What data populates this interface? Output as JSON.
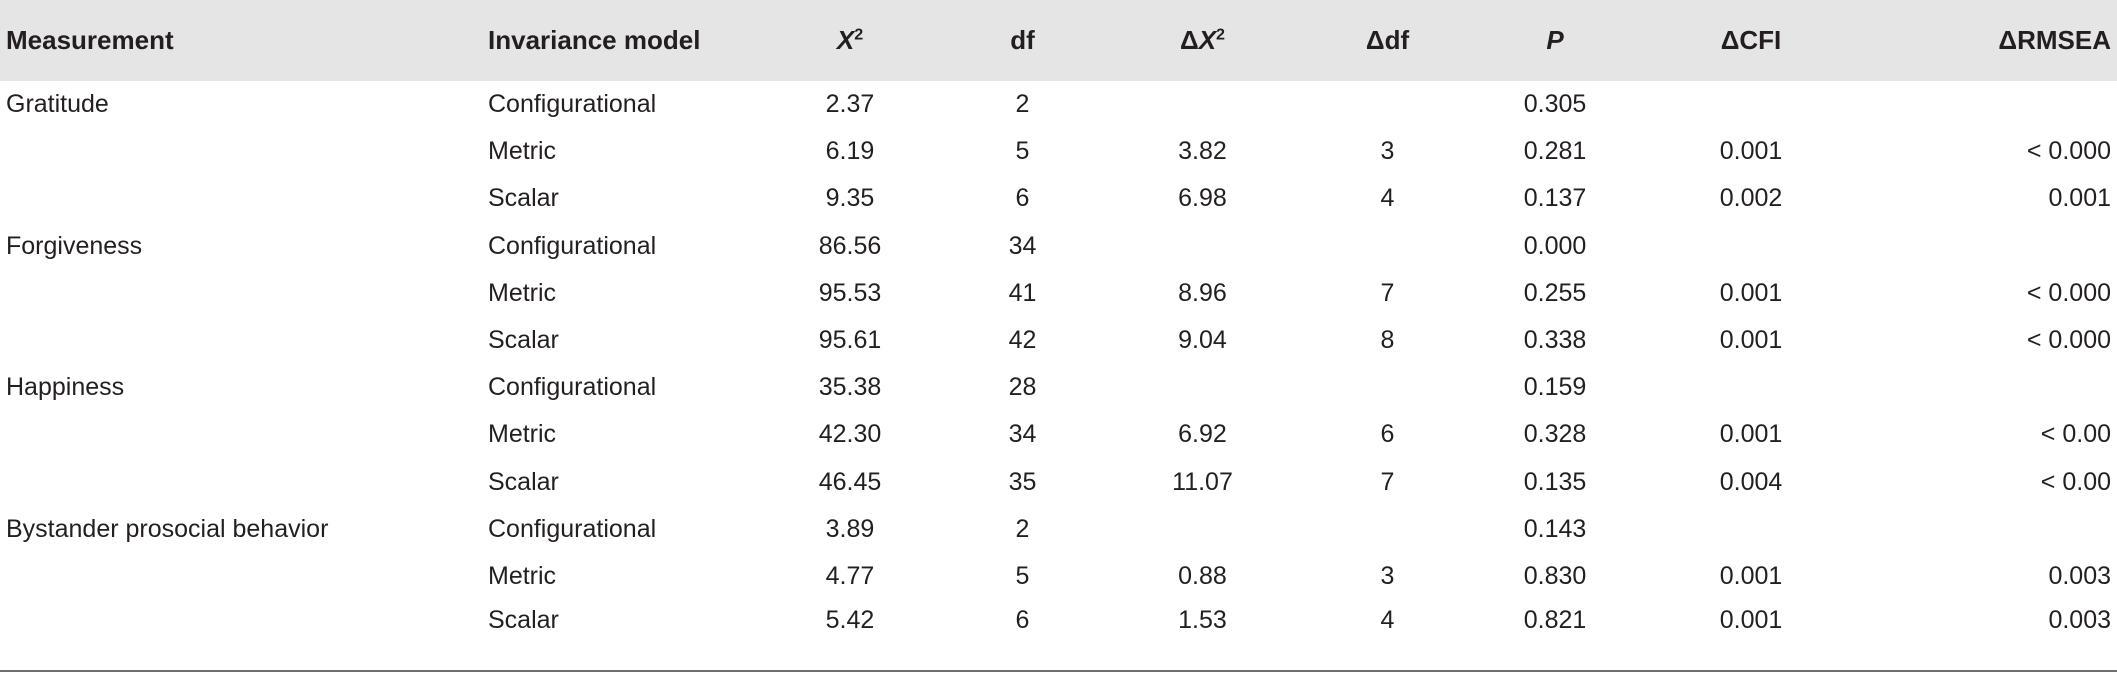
{
  "headers": {
    "measurement": "Measurement",
    "model": "Invariance model",
    "x2": "X",
    "x2_sup": "2",
    "df": "df",
    "delta": "Δ",
    "dx2": "X",
    "dx2_sup": "2",
    "ddf": "df",
    "p": "P",
    "dcfi": "ΔCFI",
    "drmsea": "ΔRMSEA"
  },
  "rows": [
    {
      "measurement": "Gratitude",
      "model": "Configurational",
      "x2": "2.37",
      "df": "2",
      "dx2": "",
      "ddf": "",
      "p": "0.305",
      "dcfi": "",
      "drmsea": ""
    },
    {
      "measurement": "",
      "model": "Metric",
      "x2": "6.19",
      "df": "5",
      "dx2": "3.82",
      "ddf": "3",
      "p": "0.281",
      "dcfi": "0.001",
      "drmsea": "< 0.000"
    },
    {
      "measurement": "",
      "model": "Scalar",
      "x2": "9.35",
      "df": "6",
      "dx2": "6.98",
      "ddf": "4",
      "p": "0.137",
      "dcfi": "0.002",
      "drmsea": "0.001"
    },
    {
      "measurement": "Forgiveness",
      "model": "Configurational",
      "x2": "86.56",
      "df": "34",
      "dx2": "",
      "ddf": "",
      "p": "0.000",
      "dcfi": "",
      "drmsea": ""
    },
    {
      "measurement": "",
      "model": "Metric",
      "x2": "95.53",
      "df": "41",
      "dx2": "8.96",
      "ddf": "7",
      "p": "0.255",
      "dcfi": "0.001",
      "drmsea": "< 0.000"
    },
    {
      "measurement": "",
      "model": "Scalar",
      "x2": "95.61",
      "df": "42",
      "dx2": "9.04",
      "ddf": "8",
      "p": "0.338",
      "dcfi": "0.001",
      "drmsea": "< 0.000"
    },
    {
      "measurement": "Happiness",
      "model": "Configurational",
      "x2": "35.38",
      "df": "28",
      "dx2": "",
      "ddf": "",
      "p": "0.159",
      "dcfi": "",
      "drmsea": ""
    },
    {
      "measurement": "",
      "model": "Metric",
      "x2": "42.30",
      "df": "34",
      "dx2": "6.92",
      "ddf": "6",
      "p": "0.328",
      "dcfi": "0.001",
      "drmsea": "< 0.00"
    },
    {
      "measurement": "",
      "model": "Scalar",
      "x2": "46.45",
      "df": "35",
      "dx2": "11.07",
      "ddf": "7",
      "p": "0.135",
      "dcfi": "0.004",
      "drmsea": "< 0.00"
    },
    {
      "measurement": "Bystander prosocial behavior",
      "model": "Configurational",
      "x2": "3.89",
      "df": "2",
      "dx2": "",
      "ddf": "",
      "p": "0.143",
      "dcfi": "",
      "drmsea": ""
    },
    {
      "measurement": "",
      "model": "Metric",
      "x2": "4.77",
      "df": "5",
      "dx2": "0.88",
      "ddf": "3",
      "p": "0.830",
      "dcfi": "0.001",
      "drmsea": "0.003"
    },
    {
      "measurement": "",
      "model": "Scalar",
      "x2": "5.42",
      "df": "6",
      "dx2": "1.53",
      "ddf": "4",
      "p": "0.821",
      "dcfi": "0.001",
      "drmsea": "0.003"
    }
  ],
  "colors": {
    "header_bg": "#e5e5e6",
    "text": "#231f20",
    "rule": "#6d6e71"
  }
}
